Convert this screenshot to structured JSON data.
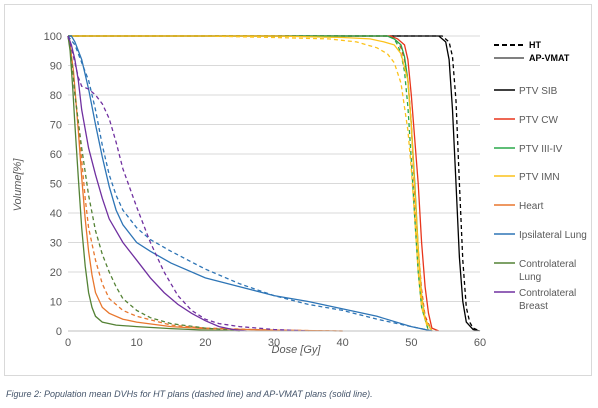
{
  "caption": "Figure 2: Population mean DVHs for HT plans (dashed line) and AP-VMAT plans (solid line).",
  "chart_data": {
    "type": "line",
    "xlabel": "Dose [Gy]",
    "ylabel": "Volume[%]",
    "xlim": [
      0,
      60
    ],
    "ylim": [
      0,
      100
    ],
    "x_ticks": [
      "0",
      "10",
      "20",
      "30",
      "40",
      "50",
      "60"
    ],
    "y_ticks": [
      "0",
      "10",
      "20",
      "30",
      "40",
      "50",
      "60",
      "70",
      "80",
      "90",
      "100"
    ],
    "grid": "horizontal",
    "legend_position": "right",
    "line_styles": [
      {
        "name": "HT",
        "dash": "dashed"
      },
      {
        "name": "AP-VMAT",
        "dash": "solid"
      }
    ],
    "series": [
      {
        "name": "PTV SIB",
        "color": "#000000",
        "vmat": [
          [
            0,
            100
          ],
          [
            54,
            100
          ],
          [
            55,
            98
          ],
          [
            55.5,
            92
          ],
          [
            56,
            75
          ],
          [
            56.5,
            50
          ],
          [
            57,
            25
          ],
          [
            57.5,
            10
          ],
          [
            58,
            3
          ],
          [
            59,
            0.5
          ],
          [
            60,
            0
          ]
        ],
        "ht": [
          [
            0,
            100
          ],
          [
            54.5,
            100
          ],
          [
            55.5,
            98
          ],
          [
            56,
            93
          ],
          [
            56.5,
            78
          ],
          [
            57,
            50
          ],
          [
            57.5,
            24
          ],
          [
            58,
            8
          ],
          [
            58.5,
            3
          ],
          [
            59,
            1
          ],
          [
            60,
            0
          ]
        ]
      },
      {
        "name": "PTV CW",
        "color": "#e8351b",
        "vmat": [
          [
            0,
            100
          ],
          [
            47,
            100
          ],
          [
            48,
            99
          ],
          [
            49,
            97
          ],
          [
            49.5,
            92
          ],
          [
            50,
            80
          ],
          [
            51,
            50
          ],
          [
            51.5,
            30
          ],
          [
            52,
            15
          ],
          [
            52.5,
            6
          ],
          [
            53,
            1
          ],
          [
            54,
            0
          ]
        ],
        "ht": [
          [
            0,
            100
          ],
          [
            47,
            100
          ],
          [
            48,
            98
          ],
          [
            48.5,
            96
          ],
          [
            49,
            92
          ],
          [
            49.5,
            85
          ],
          [
            50,
            70
          ],
          [
            50.5,
            45
          ],
          [
            51,
            28
          ],
          [
            51.5,
            14
          ],
          [
            52,
            5
          ],
          [
            53,
            0
          ]
        ]
      },
      {
        "name": "PTV III-IV",
        "color": "#2aa84a",
        "vmat": [
          [
            0,
            100
          ],
          [
            46.5,
            100
          ],
          [
            47.5,
            99
          ],
          [
            48.5,
            97
          ],
          [
            49,
            93
          ],
          [
            49.5,
            85
          ],
          [
            50,
            70
          ],
          [
            50.5,
            50
          ],
          [
            51,
            28
          ],
          [
            51.5,
            12
          ],
          [
            52,
            4
          ],
          [
            53,
            0
          ]
        ],
        "ht": [
          [
            0,
            100
          ],
          [
            46.5,
            100
          ],
          [
            47.5,
            99
          ],
          [
            48,
            97
          ],
          [
            48.5,
            94
          ],
          [
            49,
            88
          ],
          [
            49.5,
            76
          ],
          [
            50,
            58
          ],
          [
            50.5,
            38
          ],
          [
            51,
            20
          ],
          [
            51.5,
            8
          ],
          [
            52.5,
            0
          ]
        ]
      },
      {
        "name": "PTV IMN",
        "color": "#fcc21b",
        "vmat": [
          [
            0,
            100
          ],
          [
            30,
            100
          ],
          [
            40,
            99.5
          ],
          [
            44,
            99
          ],
          [
            46,
            98
          ],
          [
            47.5,
            97
          ],
          [
            48.5,
            94
          ],
          [
            49.5,
            85
          ],
          [
            50,
            70
          ],
          [
            50.5,
            48
          ],
          [
            51,
            28
          ],
          [
            51.5,
            12
          ],
          [
            52,
            4
          ],
          [
            53,
            0
          ]
        ],
        "ht": [
          [
            0,
            100
          ],
          [
            20,
            100
          ],
          [
            30,
            99.5
          ],
          [
            38,
            99
          ],
          [
            42,
            98
          ],
          [
            45,
            96
          ],
          [
            46.5,
            94
          ],
          [
            47.5,
            91
          ],
          [
            48.5,
            84
          ],
          [
            49.5,
            68
          ],
          [
            50,
            55
          ],
          [
            50.5,
            38
          ],
          [
            51,
            20
          ],
          [
            51.5,
            8
          ],
          [
            52.5,
            0
          ]
        ]
      },
      {
        "name": "Heart",
        "color": "#e8772e",
        "vmat": [
          [
            0,
            100
          ],
          [
            0.3,
            97
          ],
          [
            0.8,
            88
          ],
          [
            1.5,
            68
          ],
          [
            2,
            52
          ],
          [
            2.5,
            38
          ],
          [
            3,
            27
          ],
          [
            3.5,
            19
          ],
          [
            4,
            13
          ],
          [
            5,
            8
          ],
          [
            6,
            6
          ],
          [
            8,
            4
          ],
          [
            10,
            3
          ],
          [
            15,
            1.5
          ],
          [
            20,
            0.8
          ],
          [
            30,
            0.3
          ],
          [
            40,
            0
          ]
        ],
        "ht": [
          [
            0,
            100
          ],
          [
            0.3,
            96
          ],
          [
            0.8,
            86
          ],
          [
            1.5,
            70
          ],
          [
            2,
            58
          ],
          [
            2.5,
            45
          ],
          [
            3,
            35
          ],
          [
            4,
            24
          ],
          [
            5,
            16
          ],
          [
            6,
            11
          ],
          [
            8,
            7
          ],
          [
            10,
            5
          ],
          [
            15,
            2
          ],
          [
            20,
            1
          ],
          [
            30,
            0.3
          ],
          [
            40,
            0
          ]
        ]
      },
      {
        "name": "Ipsilateral Lung",
        "color": "#2e75b6",
        "vmat": [
          [
            0,
            100
          ],
          [
            0.5,
            100
          ],
          [
            1,
            98
          ],
          [
            2,
            92
          ],
          [
            3,
            82
          ],
          [
            4,
            70
          ],
          [
            5,
            59
          ],
          [
            6,
            49
          ],
          [
            7,
            41
          ],
          [
            8,
            36
          ],
          [
            10,
            30
          ],
          [
            12,
            27
          ],
          [
            15,
            23
          ],
          [
            20,
            18
          ],
          [
            25,
            15
          ],
          [
            30,
            12
          ],
          [
            35,
            10
          ],
          [
            40,
            7.5
          ],
          [
            45,
            5
          ],
          [
            50,
            1.5
          ],
          [
            52,
            0.5
          ],
          [
            53,
            0
          ]
        ],
        "ht": [
          [
            0,
            100
          ],
          [
            1,
            97
          ],
          [
            2,
            91
          ],
          [
            3,
            85
          ],
          [
            4,
            75
          ],
          [
            5,
            63
          ],
          [
            6,
            53
          ],
          [
            7,
            46
          ],
          [
            8,
            41
          ],
          [
            10,
            35
          ],
          [
            12,
            31
          ],
          [
            15,
            27
          ],
          [
            20,
            21
          ],
          [
            25,
            16
          ],
          [
            30,
            12
          ],
          [
            35,
            9
          ],
          [
            40,
            7
          ],
          [
            45,
            4
          ],
          [
            50,
            1.5
          ],
          [
            52,
            0.5
          ],
          [
            53,
            0
          ]
        ]
      },
      {
        "name": "Controlateral Lung",
        "color": "#548235",
        "vmat": [
          [
            0,
            100
          ],
          [
            0.3,
            95
          ],
          [
            0.7,
            82
          ],
          [
            1,
            70
          ],
          [
            1.5,
            52
          ],
          [
            2,
            35
          ],
          [
            2.5,
            22
          ],
          [
            3,
            13
          ],
          [
            3.5,
            8
          ],
          [
            4,
            5
          ],
          [
            5,
            3
          ],
          [
            7,
            2
          ],
          [
            10,
            1.5
          ],
          [
            15,
            0.8
          ],
          [
            20,
            0.3
          ],
          [
            25,
            0
          ]
        ],
        "ht": [
          [
            0,
            100
          ],
          [
            0.3,
            96
          ],
          [
            0.7,
            88
          ],
          [
            1,
            80
          ],
          [
            2,
            62
          ],
          [
            3,
            46
          ],
          [
            4,
            34
          ],
          [
            5,
            26
          ],
          [
            6,
            20
          ],
          [
            7,
            15
          ],
          [
            8,
            11
          ],
          [
            10,
            7
          ],
          [
            12,
            4.5
          ],
          [
            15,
            2.5
          ],
          [
            20,
            1
          ],
          [
            25,
            0
          ]
        ]
      },
      {
        "name": "Controlateral Breast",
        "color": "#7030a0",
        "vmat": [
          [
            0,
            100
          ],
          [
            0.5,
            97
          ],
          [
            1,
            92
          ],
          [
            1.5,
            85
          ],
          [
            2,
            75
          ],
          [
            3,
            62
          ],
          [
            4,
            53
          ],
          [
            5,
            45
          ],
          [
            6,
            38
          ],
          [
            8,
            30
          ],
          [
            10,
            24
          ],
          [
            12,
            18
          ],
          [
            14,
            13
          ],
          [
            16,
            9
          ],
          [
            18,
            6
          ],
          [
            20,
            3.5
          ],
          [
            22,
            1.5
          ],
          [
            24,
            0.5
          ],
          [
            26,
            0
          ]
        ],
        "ht": [
          [
            0,
            100
          ],
          [
            0.5,
            96
          ],
          [
            1,
            91
          ],
          [
            1.5,
            86
          ],
          [
            2,
            83
          ],
          [
            3,
            82
          ],
          [
            4,
            80
          ],
          [
            5,
            77
          ],
          [
            6,
            72
          ],
          [
            7,
            64
          ],
          [
            8,
            55
          ],
          [
            10,
            42
          ],
          [
            12,
            30
          ],
          [
            14,
            20
          ],
          [
            16,
            12
          ],
          [
            18,
            7
          ],
          [
            20,
            4
          ],
          [
            22,
            2.5
          ],
          [
            25,
            1.5
          ],
          [
            30,
            0.5
          ],
          [
            35,
            0
          ]
        ]
      }
    ]
  }
}
